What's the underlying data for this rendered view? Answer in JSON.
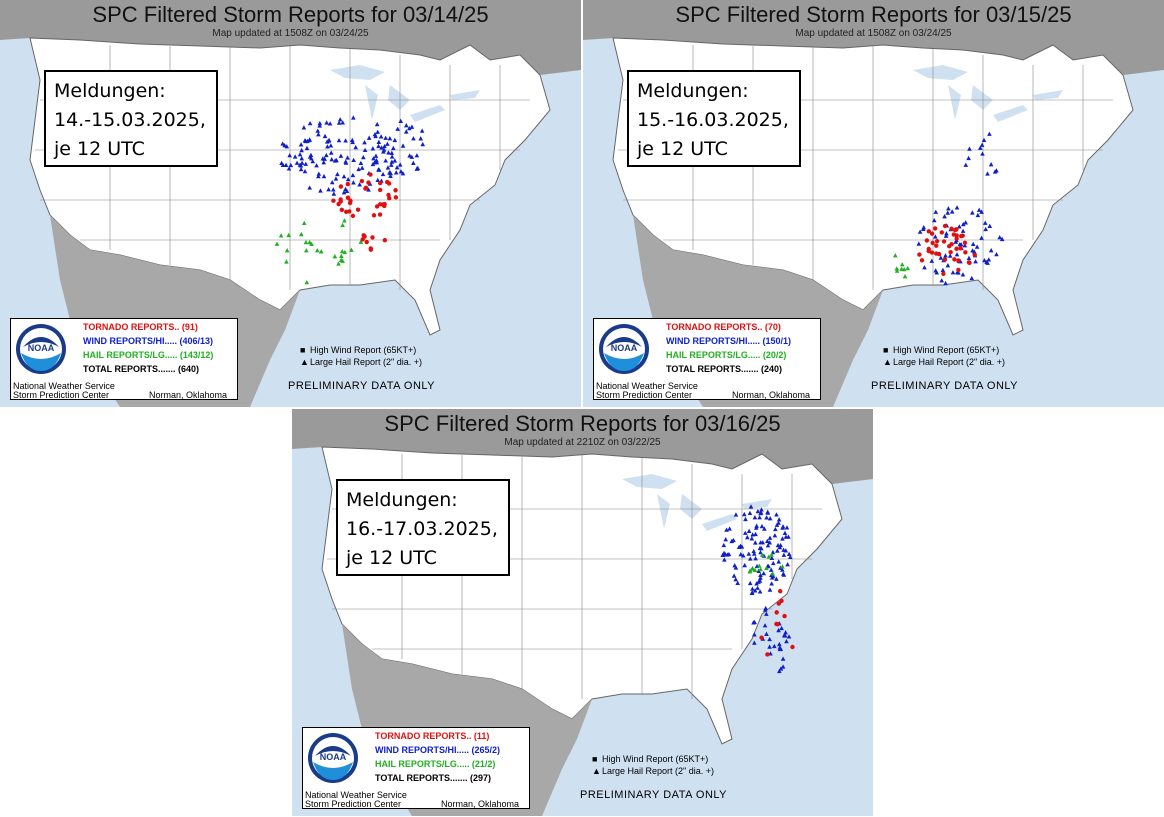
{
  "panels": [
    {
      "title": "SPC Filtered Storm Reports for 03/14/25",
      "updated": "Map updated at 1508Z on 03/24/25",
      "callout": [
        "Meldungen:",
        "14.-15.03.2025,",
        "je 12 UTC"
      ],
      "tornado": "TORNADO REPORTS.. (91)",
      "wind": "WIND REPORTS/HI..... (406/13)",
      "hail": "HAIL REPORTS/LG..... (143/12)",
      "total": "TOTAL REPORTS....... (640)",
      "clusters": [
        {
          "type": "wind",
          "cx": 340,
          "cy": 155,
          "rx": 60,
          "ry": 40,
          "n": 120
        },
        {
          "type": "wind",
          "cx": 400,
          "cy": 150,
          "rx": 30,
          "ry": 30,
          "n": 40
        },
        {
          "type": "hail",
          "cx": 320,
          "cy": 250,
          "rx": 45,
          "ry": 35,
          "n": 25
        },
        {
          "type": "tornado",
          "cx": 365,
          "cy": 195,
          "rx": 35,
          "ry": 25,
          "n": 35
        },
        {
          "type": "tornado",
          "cx": 370,
          "cy": 240,
          "rx": 15,
          "ry": 10,
          "n": 8
        }
      ]
    },
    {
      "title": "SPC Filtered Storm Reports for 03/15/25",
      "updated": "Map updated at 1508Z on 03/24/25",
      "callout": [
        "Meldungen:",
        "15.-16.03.2025,",
        "je 12 UTC"
      ],
      "tornado": "TORNADO REPORTS.. (70)",
      "wind": "WIND REPORTS/HI..... (150/1)",
      "hail": "HAIL REPORTS/LG..... (20/2)",
      "total": "TOTAL REPORTS....... (240)",
      "clusters": [
        {
          "type": "wind",
          "cx": 375,
          "cy": 245,
          "rx": 45,
          "ry": 40,
          "n": 70
        },
        {
          "type": "wind",
          "cx": 400,
          "cy": 155,
          "rx": 20,
          "ry": 25,
          "n": 12
        },
        {
          "type": "hail",
          "cx": 320,
          "cy": 265,
          "rx": 15,
          "ry": 12,
          "n": 8
        },
        {
          "type": "tornado",
          "cx": 365,
          "cy": 250,
          "rx": 30,
          "ry": 25,
          "n": 40
        }
      ]
    },
    {
      "title": "SPC Filtered Storm Reports for 03/16/25",
      "updated": "Map updated at 2210Z on 03/22/25",
      "callout": [
        "Meldungen:",
        "16.-17.03.2025,",
        "je 12 UTC"
      ],
      "tornado": "TORNADO REPORTS.. (11)",
      "wind": "WIND REPORTS/HI..... (265/2)",
      "hail": "HAIL REPORTS/LG..... (21/2)",
      "total": "TOTAL REPORTS....... (297)",
      "clusters": [
        {
          "type": "wind",
          "cx": 465,
          "cy": 140,
          "rx": 35,
          "ry": 45,
          "n": 120
        },
        {
          "type": "wind",
          "cx": 480,
          "cy": 230,
          "rx": 25,
          "ry": 35,
          "n": 30
        },
        {
          "type": "hail",
          "cx": 475,
          "cy": 160,
          "rx": 20,
          "ry": 15,
          "n": 12
        },
        {
          "type": "tornado",
          "cx": 485,
          "cy": 220,
          "rx": 20,
          "ry": 40,
          "n": 10
        }
      ]
    }
  ],
  "legend": {
    "nws": "National Weather Service",
    "spc": "Storm Prediction Center",
    "city": "Norman, Oklahoma",
    "high_wind": "High Wind Report (65KT+)",
    "large_hail": "Large Hail Report (2\" dia. +)",
    "prelim": "PRELIMINARY DATA ONLY",
    "noaa": "NOAA"
  },
  "colors": {
    "tornado": "#e01010",
    "wind": "#1020c8",
    "hail": "#20b020",
    "water": "#cfe0f0",
    "land": "#ffffff",
    "canada": "#9a9a9a",
    "mexico": "#a8a8a8"
  }
}
